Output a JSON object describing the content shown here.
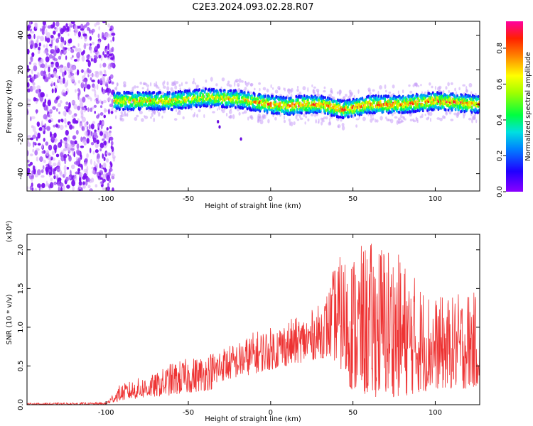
{
  "title": "C2E3.2024.093.02.28.R07",
  "chart_data": [
    {
      "type": "heatmap",
      "xlabel": "Height of straight line (km)",
      "ylabel": "Frequency (Hz)",
      "xlim": [
        -148,
        127
      ],
      "ylim": [
        -50,
        48
      ],
      "xticks": [
        -100,
        -50,
        0,
        50,
        100
      ],
      "yticks": [
        -40,
        -20,
        0,
        20,
        40
      ],
      "colorbar": {
        "label": "Normalized spectral amplitude",
        "range": [
          0,
          0.95
        ],
        "ticks": [
          0.0,
          0.2,
          0.4,
          0.6,
          0.8
        ],
        "tick_labels": [
          "0.0",
          "0.2",
          "0.4",
          "0.6",
          "0.8"
        ],
        "colormap": "rainbow"
      },
      "ridge": {
        "x": [
          -95,
          -80,
          -60,
          -40,
          -20,
          0,
          10,
          20,
          30,
          40,
          45,
          50,
          60,
          80,
          100,
          127
        ],
        "y": [
          2,
          2,
          2,
          4,
          3,
          0,
          -1,
          0,
          0,
          -2,
          -3,
          -2,
          0,
          0,
          2,
          0
        ]
      },
      "noise_region_x": [
        -148,
        -95
      ]
    },
    {
      "type": "line",
      "xlabel": "Height of straight line (km)",
      "ylabel": "SNR (10 * v/v)",
      "yscale_label": "(x10⁴)",
      "xlim": [
        -148,
        127
      ],
      "ylim": [
        0,
        2.2
      ],
      "xticks": [
        -100,
        -50,
        0,
        50,
        100
      ],
      "yticks": [
        0.0,
        0.5,
        1.0,
        1.5,
        2.0
      ],
      "ytick_labels": [
        "0.0",
        "0.5",
        "1.0",
        "1.5",
        "2.0"
      ],
      "series": [
        {
          "color": "#ee3333",
          "envelope_x": [
            -148,
            -100,
            -92,
            -80,
            -70,
            -60,
            -50,
            -40,
            -35,
            -30,
            -20,
            -10,
            0,
            10,
            20,
            30,
            35,
            40,
            50,
            60,
            70,
            80,
            90,
            100,
            110,
            120,
            127
          ],
          "envelope_low": [
            0.0,
            0.0,
            0.05,
            0.08,
            0.1,
            0.12,
            0.15,
            0.18,
            0.2,
            0.3,
            0.35,
            0.4,
            0.45,
            0.5,
            0.55,
            0.6,
            0.6,
            0.55,
            0.15,
            0.1,
            0.1,
            0.1,
            0.15,
            0.2,
            0.2,
            0.2,
            0.25
          ],
          "envelope_high": [
            0.02,
            0.03,
            0.25,
            0.35,
            0.4,
            0.55,
            0.6,
            0.65,
            0.7,
            0.75,
            0.8,
            0.95,
            1.0,
            1.1,
            1.15,
            1.3,
            1.5,
            1.9,
            2.0,
            2.1,
            2.15,
            1.9,
            1.6,
            1.4,
            1.4,
            1.5,
            1.4
          ]
        }
      ]
    }
  ]
}
